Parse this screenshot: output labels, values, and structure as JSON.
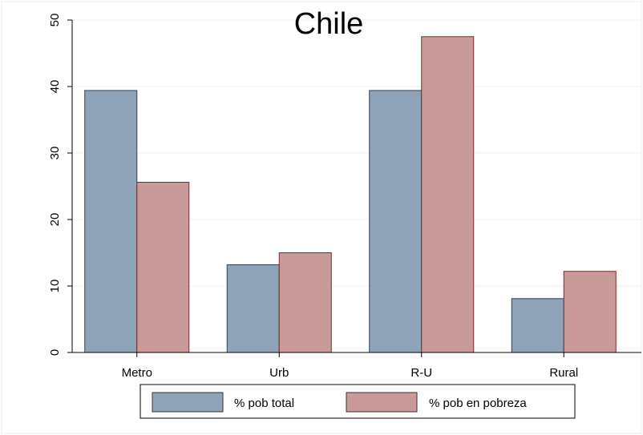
{
  "chart_data": {
    "type": "bar",
    "title": "Chile",
    "categories": [
      "Metro",
      "Urb",
      "R-U",
      "Rural"
    ],
    "series": [
      {
        "name": "% pob total",
        "values": [
          39.4,
          13.2,
          39.4,
          8.1
        ],
        "color": "#8ea3b8"
      },
      {
        "name": "% pob en pobreza",
        "values": [
          25.6,
          15.0,
          47.5,
          12.2
        ],
        "color": "#c99a9a"
      }
    ],
    "ylim": [
      0,
      50
    ],
    "yticks": [
      "0",
      "10",
      "20",
      "30",
      "40",
      "50"
    ],
    "xlabel": "",
    "ylabel": "",
    "grid": true,
    "legend_position": "bottom"
  }
}
